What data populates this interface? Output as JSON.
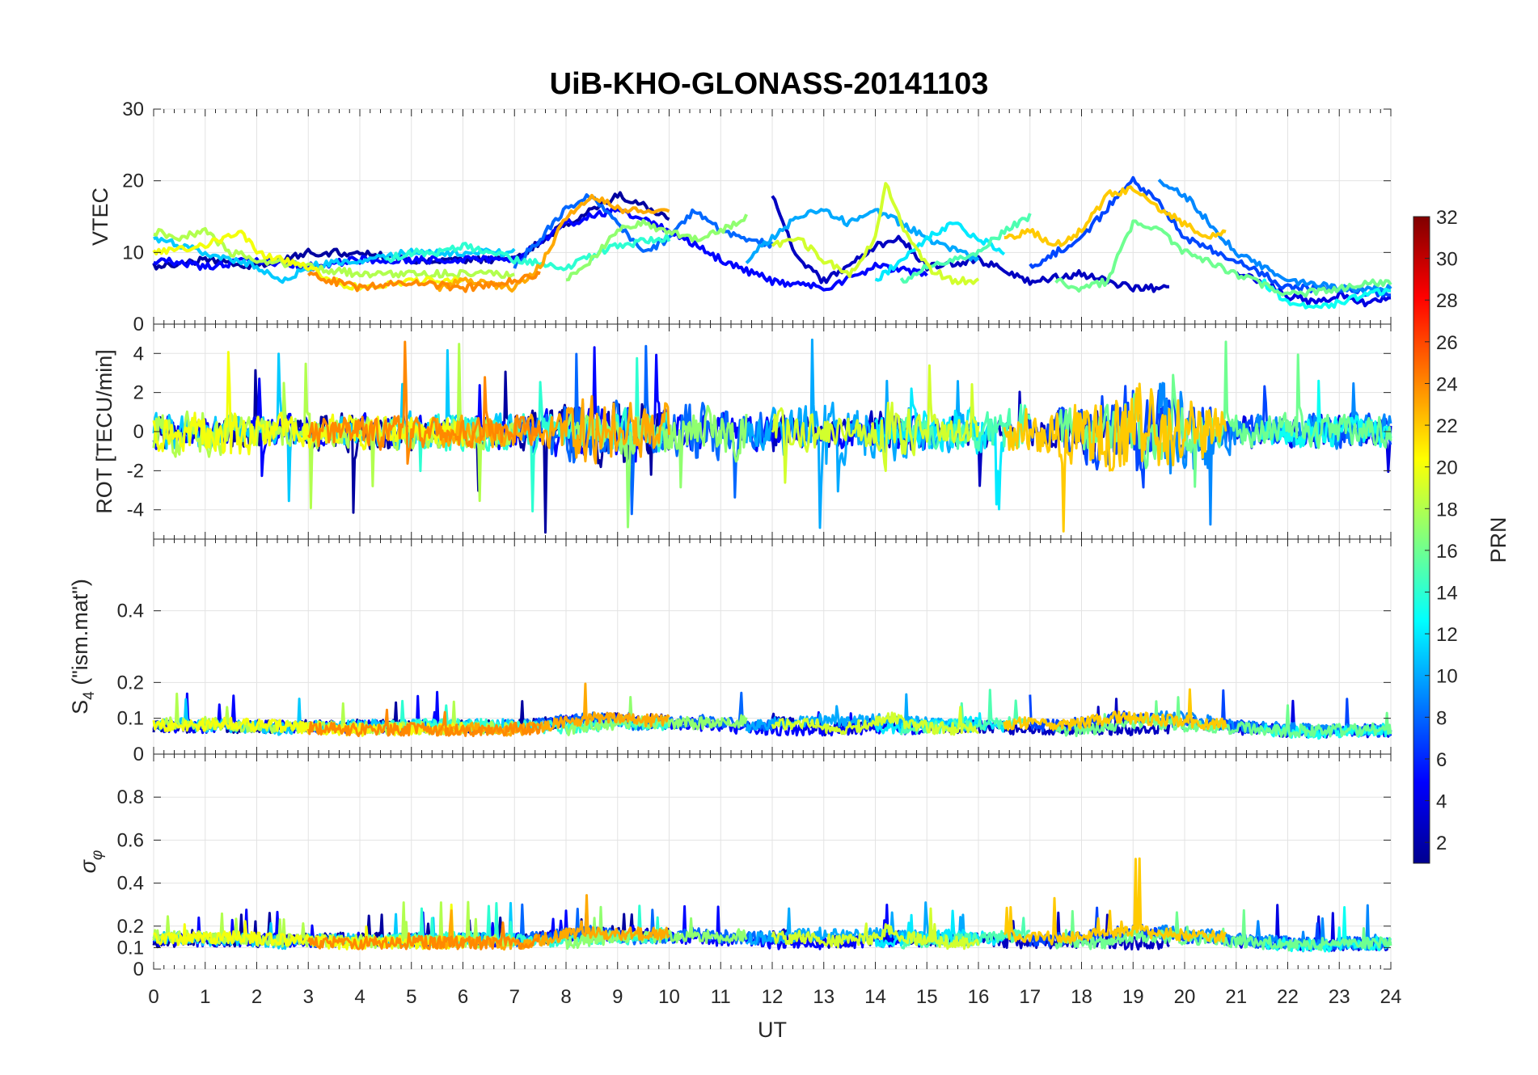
{
  "chart_data": {
    "title": "UiB-KHO-GLONASS-20141103",
    "type": "line",
    "xlabel": "UT",
    "xlim": [
      0,
      24
    ],
    "xticks": [
      "0",
      "1",
      "2",
      "3",
      "4",
      "5",
      "6",
      "7",
      "8",
      "9",
      "10",
      "11",
      "12",
      "13",
      "14",
      "15",
      "16",
      "17",
      "18",
      "19",
      "20",
      "21",
      "22",
      "23",
      "24"
    ],
    "grid": true,
    "panels": [
      {
        "ylabel": "VTEC",
        "ylim": [
          0,
          30
        ],
        "yticks": [
          "0",
          "10",
          "20",
          "30"
        ],
        "ytick_values": [
          0,
          10,
          20,
          30
        ]
      },
      {
        "ylabel": "ROT [TECU/min]",
        "ylim": [
          -5.5,
          5.5
        ],
        "yticks": [
          "-4",
          "-2",
          "0",
          "2",
          "4"
        ],
        "ytick_values": [
          -4,
          -2,
          0,
          2,
          4
        ]
      },
      {
        "ylabel_main": "S",
        "ylabel_sub": "4",
        "ylabel_rest": " (\"ism.mat\")",
        "ylim": [
          0,
          0.6
        ],
        "yticks": [
          "0",
          "0.1",
          "0.2",
          "0.4"
        ],
        "ytick_values": [
          0,
          0.1,
          0.2,
          0.4
        ]
      },
      {
        "ylabel_main": "σ",
        "ylabel_sub": "φ",
        "ylim": [
          0,
          1
        ],
        "yticks": [
          "0",
          "0.1",
          "0.2",
          "0.4",
          "0.6",
          "0.8"
        ],
        "ytick_values": [
          0,
          0.1,
          0.2,
          0.4,
          0.6,
          0.8
        ]
      }
    ],
    "colorbar": {
      "label": "PRN",
      "colormap": "jet",
      "range": [
        1,
        32
      ],
      "ticks": [
        "2",
        "4",
        "6",
        "8",
        "10",
        "12",
        "14",
        "16",
        "18",
        "20",
        "22",
        "24",
        "26",
        "28",
        "30",
        "32"
      ],
      "tick_values": [
        2,
        4,
        6,
        8,
        10,
        12,
        14,
        16,
        18,
        20,
        22,
        24,
        26,
        28,
        30,
        32
      ]
    },
    "series": [
      {
        "prn": 2,
        "vtec": [
          [
            0,
            8
          ],
          [
            1,
            9
          ],
          [
            2,
            8
          ],
          [
            3,
            10
          ],
          [
            4,
            10
          ],
          [
            5,
            9
          ],
          [
            6,
            9
          ],
          [
            7,
            9
          ],
          [
            8,
            14
          ],
          [
            9,
            18
          ],
          [
            10,
            15
          ]
        ]
      },
      {
        "prn": 3,
        "vtec": [
          [
            12,
            18
          ],
          [
            12.5,
            9
          ],
          [
            13,
            6
          ],
          [
            13.5,
            8
          ],
          [
            14,
            11
          ],
          [
            14.5,
            12
          ],
          [
            15,
            8
          ],
          [
            16,
            9
          ],
          [
            17,
            6
          ],
          [
            18,
            7
          ],
          [
            19,
            5
          ],
          [
            19.7,
            5
          ]
        ]
      },
      {
        "prn": 4,
        "vtec": [
          [
            21,
            7
          ],
          [
            21.5,
            6
          ],
          [
            22,
            4
          ],
          [
            22.5,
            3
          ],
          [
            23,
            4
          ],
          [
            23.5,
            3
          ],
          [
            24,
            4
          ]
        ]
      },
      {
        "prn": 5,
        "vtec": [
          [
            0,
            9
          ],
          [
            1,
            8
          ],
          [
            2,
            9
          ],
          [
            3,
            8
          ],
          [
            4,
            9
          ],
          [
            5,
            9
          ],
          [
            6,
            9
          ],
          [
            7,
            9
          ],
          [
            8,
            14
          ],
          [
            9,
            16
          ],
          [
            10,
            13
          ],
          [
            11,
            9
          ],
          [
            12,
            6
          ],
          [
            13,
            5
          ],
          [
            14,
            8
          ],
          [
            15,
            7
          ]
        ]
      },
      {
        "prn": 7,
        "vtec": [
          [
            17,
            8
          ],
          [
            18,
            12
          ],
          [
            18.6,
            17
          ],
          [
            19,
            20
          ],
          [
            19.5,
            17
          ],
          [
            20,
            12
          ],
          [
            21,
            9
          ],
          [
            22,
            5
          ],
          [
            23,
            5
          ],
          [
            24,
            4
          ]
        ]
      },
      {
        "prn": 8,
        "vtec": [
          [
            7,
            8
          ],
          [
            7.5,
            12
          ],
          [
            8,
            16
          ],
          [
            8.5,
            18
          ],
          [
            9,
            14
          ],
          [
            9.5,
            10
          ],
          [
            10,
            12
          ],
          [
            10.5,
            16
          ],
          [
            11,
            13
          ],
          [
            12,
            11
          ]
        ]
      },
      {
        "prn": 9,
        "vtec": [
          [
            19.5,
            20
          ],
          [
            20,
            18
          ],
          [
            20.5,
            14
          ],
          [
            21,
            10
          ],
          [
            22,
            6
          ],
          [
            23,
            5
          ],
          [
            24,
            5
          ]
        ]
      },
      {
        "prn": 10,
        "vtec": [
          [
            11.5,
            9
          ],
          [
            12,
            12
          ],
          [
            12.5,
            15
          ],
          [
            13,
            16
          ],
          [
            13.5,
            14
          ],
          [
            14,
            16
          ],
          [
            15,
            12
          ],
          [
            16,
            9
          ]
        ]
      },
      {
        "prn": 11,
        "vtec": [
          [
            0,
            12
          ],
          [
            1,
            10
          ],
          [
            2,
            8
          ],
          [
            2.5,
            6
          ],
          [
            3,
            8
          ],
          [
            4,
            9
          ],
          [
            5,
            10
          ],
          [
            6,
            10
          ],
          [
            7,
            10
          ]
        ]
      },
      {
        "prn": 12,
        "vtec": [
          [
            14,
            6
          ],
          [
            14.5,
            9
          ],
          [
            15,
            12
          ],
          [
            15.5,
            14
          ],
          [
            16,
            12
          ],
          [
            16.5,
            10
          ]
        ]
      },
      {
        "prn": 13,
        "vtec": [
          [
            21.5,
            6
          ],
          [
            22,
            3
          ],
          [
            22.5,
            2
          ],
          [
            23,
            3
          ],
          [
            24,
            5
          ]
        ]
      },
      {
        "prn": 14,
        "vtec": [
          [
            4.5,
            9
          ],
          [
            5,
            10
          ],
          [
            5.5,
            10
          ],
          [
            6,
            11
          ],
          [
            6.5,
            10
          ],
          [
            7,
            9
          ],
          [
            8,
            8
          ],
          [
            9,
            11
          ],
          [
            10,
            12
          ]
        ]
      },
      {
        "prn": 15,
        "vtec": [
          [
            14.5,
            6
          ],
          [
            15,
            8
          ],
          [
            16,
            10
          ],
          [
            16.5,
            13
          ],
          [
            17,
            15
          ]
        ]
      },
      {
        "prn": 16,
        "vtec": [
          [
            17.5,
            6
          ],
          [
            18,
            5
          ],
          [
            18.5,
            6
          ],
          [
            19,
            14
          ],
          [
            19.5,
            13
          ],
          [
            20,
            10
          ],
          [
            21,
            7
          ],
          [
            22,
            4
          ],
          [
            23,
            5
          ],
          [
            24,
            6
          ]
        ]
      },
      {
        "prn": 17,
        "vtec": [
          [
            8,
            6
          ],
          [
            8.5,
            9
          ],
          [
            9,
            13
          ],
          [
            9.5,
            14
          ],
          [
            10,
            13
          ],
          [
            10.5,
            12
          ],
          [
            11,
            13
          ],
          [
            11.5,
            15
          ]
        ]
      },
      {
        "prn": 18,
        "vtec": [
          [
            0,
            13
          ],
          [
            0.5,
            12
          ],
          [
            1,
            13
          ],
          [
            1.5,
            10
          ],
          [
            2,
            9
          ],
          [
            3,
            8
          ],
          [
            4,
            7
          ],
          [
            5,
            7
          ],
          [
            6,
            7
          ],
          [
            7,
            7
          ]
        ]
      },
      {
        "prn": 19,
        "vtec": [
          [
            12,
            11
          ],
          [
            12.5,
            12
          ],
          [
            13,
            9
          ],
          [
            13.5,
            7
          ],
          [
            14,
            12
          ],
          [
            14.2,
            20
          ],
          [
            14.5,
            14
          ],
          [
            15,
            8
          ],
          [
            15.5,
            6
          ],
          [
            16,
            6
          ]
        ]
      },
      {
        "prn": 20,
        "vtec": [
          [
            0,
            10
          ],
          [
            1,
            11
          ],
          [
            1.7,
            13
          ],
          [
            2,
            10
          ],
          [
            3,
            8
          ],
          [
            3.5,
            6
          ],
          [
            4,
            5
          ],
          [
            5,
            6
          ],
          [
            6,
            6
          ]
        ]
      },
      {
        "prn": 22,
        "vtec": [
          [
            16.5,
            12
          ],
          [
            17,
            13
          ],
          [
            17.5,
            11
          ],
          [
            18,
            13
          ],
          [
            18.5,
            18
          ],
          [
            19,
            19
          ],
          [
            19.5,
            16
          ],
          [
            20,
            14
          ],
          [
            20.5,
            12
          ],
          [
            20.8,
            13
          ]
        ]
      },
      {
        "prn": 23,
        "vtec": [
          [
            5.5,
            5
          ],
          [
            6,
            6
          ],
          [
            7,
            5
          ],
          [
            7.5,
            8
          ],
          [
            8,
            15
          ],
          [
            8.5,
            18
          ],
          [
            9,
            16
          ],
          [
            9.5,
            16
          ],
          [
            10,
            16
          ]
        ]
      },
      {
        "prn": 24,
        "vtec": [
          [
            3,
            7
          ],
          [
            4,
            5
          ],
          [
            5,
            6
          ],
          [
            6,
            5
          ],
          [
            7,
            6
          ],
          [
            7.5,
            7
          ]
        ]
      }
    ]
  }
}
